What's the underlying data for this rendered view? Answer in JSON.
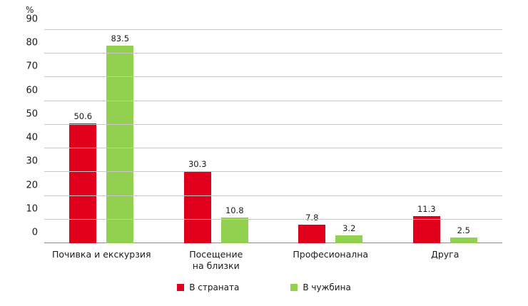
{
  "chart_data": {
    "type": "bar",
    "categories": [
      "Почивка и екскурзия",
      "Посещение\nна близки",
      "Професионална",
      "Друга"
    ],
    "series": [
      {
        "name": "В страната",
        "color": "#e0001b",
        "values": [
          50.6,
          30.3,
          7.8,
          11.3
        ]
      },
      {
        "name": "В чужбина",
        "color": "#92d050",
        "values": [
          83.5,
          10.8,
          3.2,
          2.5
        ]
      }
    ],
    "title": "",
    "xlabel": "",
    "ylabel": "%",
    "ylim": [
      0,
      90
    ],
    "ytick_step": 10,
    "grid": true,
    "legend_position": "bottom"
  },
  "colors": {
    "gridline": "#c8c8c8",
    "axis": "#8c8c8c",
    "text": "#1a1a1a",
    "background": "#ffffff"
  }
}
